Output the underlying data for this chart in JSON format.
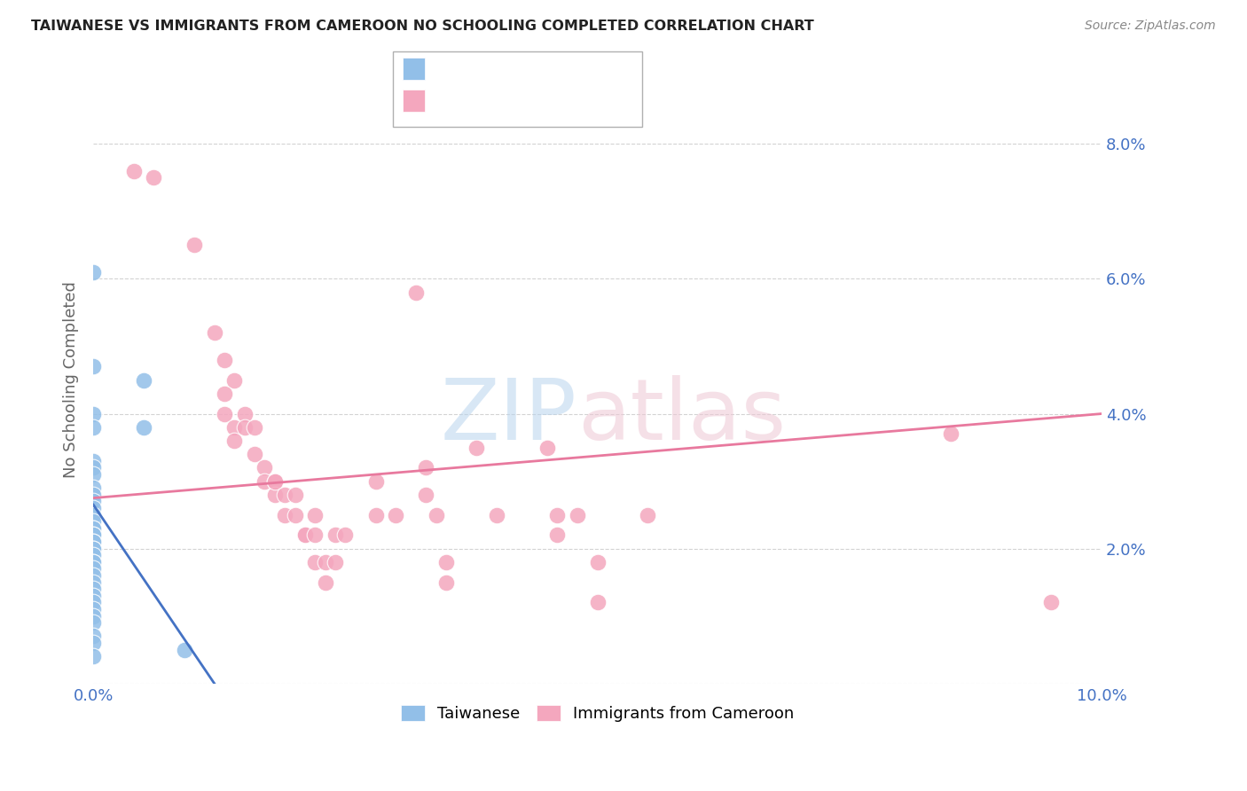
{
  "title": "TAIWANESE VS IMMIGRANTS FROM CAMEROON NO SCHOOLING COMPLETED CORRELATION CHART",
  "source": "Source: ZipAtlas.com",
  "ylabel": "No Schooling Completed",
  "xlim": [
    0.0,
    0.1
  ],
  "ylim": [
    0.0,
    0.09
  ],
  "yticks": [
    0.0,
    0.02,
    0.04,
    0.06,
    0.08
  ],
  "ytick_right_labels": [
    "",
    "2.0%",
    "4.0%",
    "6.0%",
    "8.0%"
  ],
  "xticks": [
    0.0,
    0.02,
    0.04,
    0.06,
    0.08,
    0.1
  ],
  "xtick_labels": [
    "0.0%",
    "",
    "",
    "",
    "",
    "10.0%"
  ],
  "blue_color": "#92bfe8",
  "pink_color": "#f4a7be",
  "blue_line_color": "#4472c4",
  "pink_line_color": "#e8799e",
  "grid_color": "#c8c8c8",
  "blue_line_x": [
    0.0,
    0.012
  ],
  "blue_line_y": [
    0.0265,
    0.0
  ],
  "pink_line_x": [
    0.0,
    0.1
  ],
  "pink_line_y": [
    0.0275,
    0.04
  ],
  "taiwanese_points": [
    [
      0.0,
      0.061
    ],
    [
      0.0,
      0.047
    ],
    [
      0.0,
      0.04
    ],
    [
      0.0,
      0.038
    ],
    [
      0.005,
      0.045
    ],
    [
      0.005,
      0.038
    ],
    [
      0.0,
      0.033
    ],
    [
      0.0,
      0.032
    ],
    [
      0.0,
      0.031
    ],
    [
      0.0,
      0.029
    ],
    [
      0.0,
      0.028
    ],
    [
      0.0,
      0.027
    ],
    [
      0.0,
      0.026
    ],
    [
      0.0,
      0.025
    ],
    [
      0.0,
      0.024
    ],
    [
      0.0,
      0.023
    ],
    [
      0.0,
      0.023
    ],
    [
      0.0,
      0.022
    ],
    [
      0.0,
      0.022
    ],
    [
      0.0,
      0.021
    ],
    [
      0.0,
      0.021
    ],
    [
      0.0,
      0.02
    ],
    [
      0.0,
      0.02
    ],
    [
      0.0,
      0.019
    ],
    [
      0.0,
      0.018
    ],
    [
      0.0,
      0.018
    ],
    [
      0.0,
      0.017
    ],
    [
      0.0,
      0.016
    ],
    [
      0.0,
      0.015
    ],
    [
      0.0,
      0.014
    ],
    [
      0.0,
      0.013
    ],
    [
      0.0,
      0.012
    ],
    [
      0.0,
      0.011
    ],
    [
      0.0,
      0.01
    ],
    [
      0.0,
      0.009
    ],
    [
      0.0,
      0.007
    ],
    [
      0.0,
      0.006
    ],
    [
      0.0,
      0.004
    ],
    [
      0.009,
      0.005
    ]
  ],
  "cameroon_points": [
    [
      0.004,
      0.076
    ],
    [
      0.006,
      0.075
    ],
    [
      0.01,
      0.065
    ],
    [
      0.012,
      0.052
    ],
    [
      0.013,
      0.048
    ],
    [
      0.014,
      0.045
    ],
    [
      0.013,
      0.043
    ],
    [
      0.013,
      0.04
    ],
    [
      0.014,
      0.038
    ],
    [
      0.014,
      0.036
    ],
    [
      0.015,
      0.04
    ],
    [
      0.015,
      0.038
    ],
    [
      0.016,
      0.038
    ],
    [
      0.016,
      0.034
    ],
    [
      0.017,
      0.032
    ],
    [
      0.017,
      0.03
    ],
    [
      0.018,
      0.03
    ],
    [
      0.018,
      0.028
    ],
    [
      0.018,
      0.03
    ],
    [
      0.019,
      0.028
    ],
    [
      0.019,
      0.025
    ],
    [
      0.02,
      0.028
    ],
    [
      0.02,
      0.025
    ],
    [
      0.021,
      0.022
    ],
    [
      0.021,
      0.022
    ],
    [
      0.022,
      0.025
    ],
    [
      0.022,
      0.022
    ],
    [
      0.022,
      0.018
    ],
    [
      0.023,
      0.015
    ],
    [
      0.023,
      0.018
    ],
    [
      0.024,
      0.022
    ],
    [
      0.024,
      0.018
    ],
    [
      0.025,
      0.022
    ],
    [
      0.028,
      0.03
    ],
    [
      0.028,
      0.025
    ],
    [
      0.03,
      0.025
    ],
    [
      0.032,
      0.058
    ],
    [
      0.033,
      0.032
    ],
    [
      0.033,
      0.028
    ],
    [
      0.034,
      0.025
    ],
    [
      0.035,
      0.018
    ],
    [
      0.035,
      0.015
    ],
    [
      0.038,
      0.035
    ],
    [
      0.04,
      0.025
    ],
    [
      0.045,
      0.035
    ],
    [
      0.046,
      0.022
    ],
    [
      0.046,
      0.025
    ],
    [
      0.048,
      0.025
    ],
    [
      0.05,
      0.018
    ],
    [
      0.05,
      0.012
    ],
    [
      0.055,
      0.025
    ],
    [
      0.085,
      0.037
    ],
    [
      0.095,
      0.012
    ]
  ]
}
